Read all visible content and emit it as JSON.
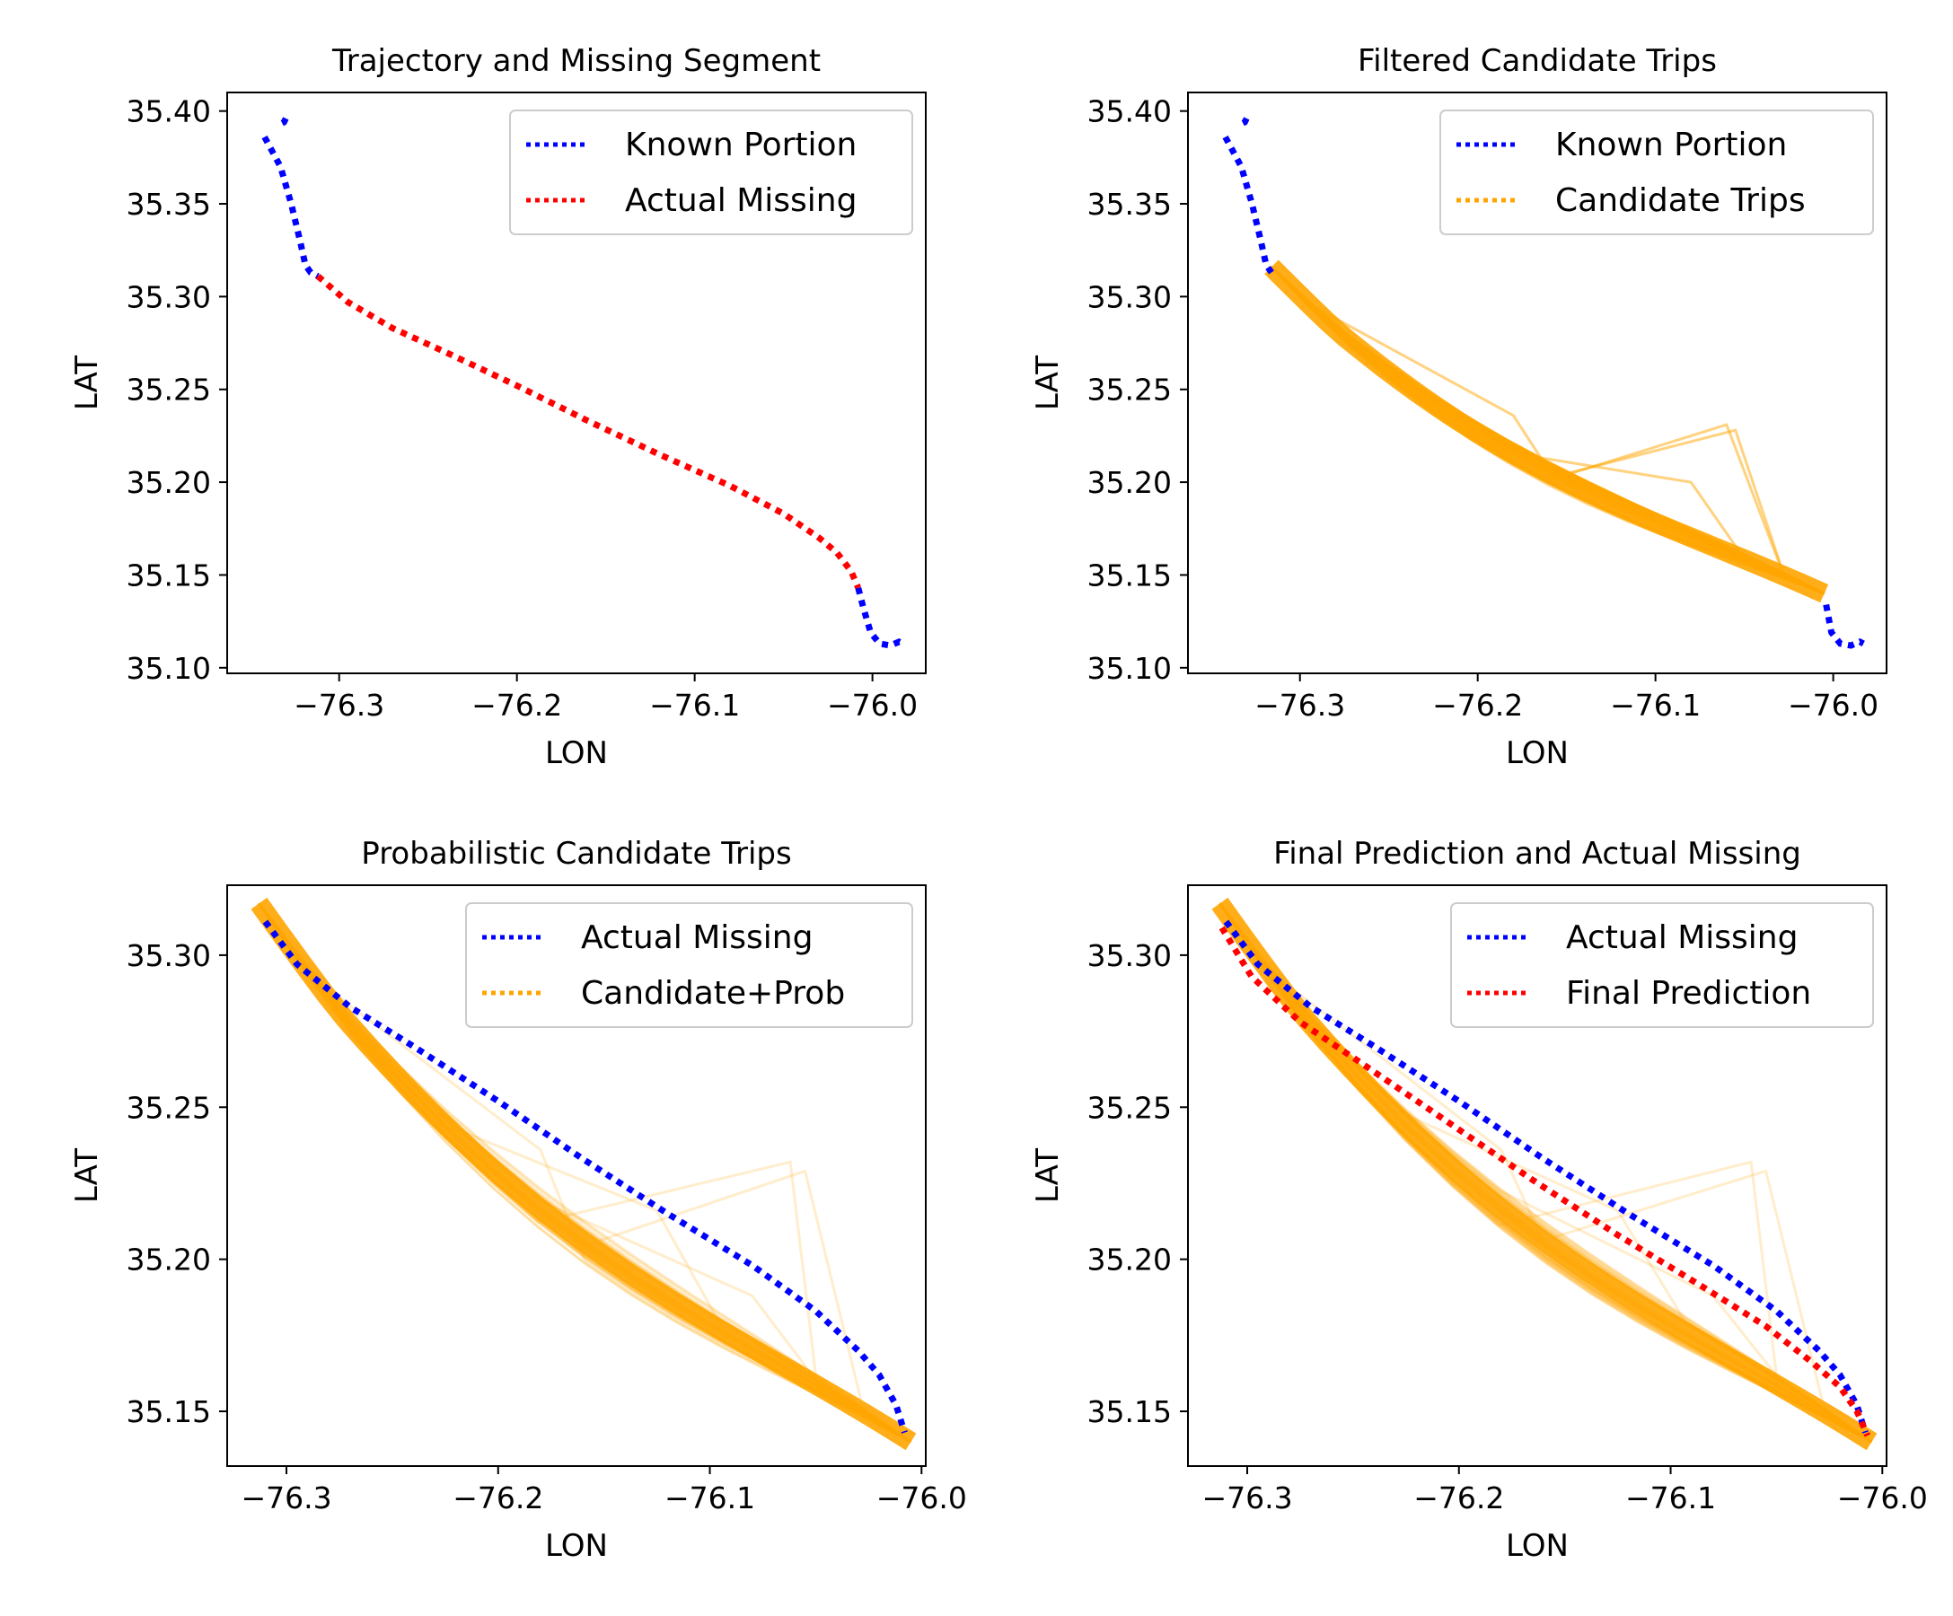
{
  "figure": {
    "panels": 4,
    "layout": "2x2"
  },
  "colors": {
    "known": "#0000ff",
    "actual_missing_red": "#ff0000",
    "candidate": "#ffa500",
    "prediction": "#ff0000"
  },
  "chart_data": [
    {
      "type": "line",
      "title": "Trajectory and Missing Segment",
      "xlabel": "LON",
      "ylabel": "LAT",
      "xlim": [
        -76.363,
        -75.97
      ],
      "ylim": [
        35.097,
        35.41
      ],
      "xticks": [
        -76.3,
        -76.2,
        -76.1,
        -76.0
      ],
      "xtick_labels": [
        "−76.3",
        "−76.2",
        "−76.1",
        "−76.0"
      ],
      "yticks": [
        35.1,
        35.15,
        35.2,
        35.25,
        35.3,
        35.35,
        35.4
      ],
      "ytick_labels": [
        "35.10",
        "35.15",
        "35.20",
        "35.25",
        "35.30",
        "35.35",
        "35.40"
      ],
      "legend": {
        "position": "top-right",
        "entries": [
          {
            "label": "Known Portion",
            "color": "#0000ff"
          },
          {
            "label": "Actual Missing",
            "color": "#ff0000"
          }
        ]
      },
      "series": [
        {
          "name": "Known Portion",
          "color": "#0000ff",
          "style": "dotted",
          "x": [
            -76.33,
            -76.331,
            -76.333
          ],
          "y": [
            35.396,
            35.394,
            35.393
          ]
        },
        {
          "name": "Known Portion",
          "color": "#0000ff",
          "style": "dotted",
          "x": [
            -76.342,
            -76.333,
            -76.327,
            -76.322,
            -76.319,
            -76.316,
            -76.312
          ],
          "y": [
            35.386,
            35.37,
            35.35,
            35.33,
            35.317,
            35.313,
            35.311
          ]
        },
        {
          "name": "Actual Missing",
          "color": "#ff0000",
          "style": "dotted",
          "x": [
            -76.312,
            -76.295,
            -76.27,
            -76.24,
            -76.2,
            -76.16,
            -76.12,
            -76.08,
            -76.05,
            -76.03,
            -76.02,
            -76.012,
            -76.008
          ],
          "y": [
            35.311,
            35.297,
            35.283,
            35.27,
            35.252,
            35.233,
            35.215,
            35.198,
            35.183,
            35.17,
            35.162,
            35.152,
            35.143
          ]
        },
        {
          "name": "Known Portion",
          "color": "#0000ff",
          "style": "dotted",
          "x": [
            -76.008,
            -76.005,
            -76.001,
            -75.996,
            -75.99,
            -75.985,
            -75.983
          ],
          "y": [
            35.143,
            35.132,
            35.119,
            35.113,
            35.112,
            35.114,
            35.113
          ]
        }
      ]
    },
    {
      "type": "line",
      "title": "Filtered Candidate Trips",
      "xlabel": "LON",
      "ylabel": "LAT",
      "xlim": [
        -76.363,
        -75.97
      ],
      "ylim": [
        35.097,
        35.41
      ],
      "xticks": [
        -76.3,
        -76.2,
        -76.1,
        -76.0
      ],
      "xtick_labels": [
        "−76.3",
        "−76.2",
        "−76.1",
        "−76.0"
      ],
      "yticks": [
        35.1,
        35.15,
        35.2,
        35.25,
        35.3,
        35.35,
        35.4
      ],
      "ytick_labels": [
        "35.10",
        "35.15",
        "35.20",
        "35.25",
        "35.30",
        "35.35",
        "35.40"
      ],
      "legend": {
        "position": "top-right",
        "entries": [
          {
            "label": "Known Portion",
            "color": "#0000ff"
          },
          {
            "label": "Candidate Trips",
            "color": "#ffa500"
          }
        ]
      },
      "candidate_bundle": {
        "count": 40,
        "color": "#ffa500",
        "opacity": 0.5,
        "start": [
          -76.316,
          35.312
        ],
        "end": [
          -76.005,
          35.14
        ],
        "detours": [
          [
            -76.06,
            35.231
          ],
          [
            -76.055,
            35.228
          ],
          [
            -76.13,
            35.186
          ],
          [
            -76.08,
            35.2
          ],
          [
            -76.18,
            35.236
          ]
        ]
      },
      "series": [
        {
          "name": "Known Portion",
          "color": "#0000ff",
          "style": "dotted",
          "x": [
            -76.33,
            -76.331,
            -76.333
          ],
          "y": [
            35.396,
            35.394,
            35.393
          ]
        },
        {
          "name": "Known Portion",
          "color": "#0000ff",
          "style": "dotted",
          "x": [
            -76.342,
            -76.333,
            -76.327,
            -76.322,
            -76.319,
            -76.316
          ],
          "y": [
            35.386,
            35.37,
            35.35,
            35.33,
            35.317,
            35.313
          ]
        },
        {
          "name": "Known Portion",
          "color": "#0000ff",
          "style": "dotted",
          "x": [
            -76.004,
            -76.001,
            -75.996,
            -75.99,
            -75.985,
            -75.983
          ],
          "y": [
            35.134,
            35.119,
            35.113,
            35.112,
            35.114,
            35.113
          ]
        }
      ]
    },
    {
      "type": "line",
      "title": "Probabilistic Candidate Trips",
      "xlabel": "LON",
      "ylabel": "LAT",
      "xlim": [
        -76.328,
        -75.998
      ],
      "ylim": [
        35.132,
        35.323
      ],
      "xticks": [
        -76.3,
        -76.2,
        -76.1,
        -76.0
      ],
      "xtick_labels": [
        "−76.3",
        "−76.2",
        "−76.1",
        "−76.0"
      ],
      "yticks": [
        35.15,
        35.2,
        35.25,
        35.3
      ],
      "ytick_labels": [
        "35.15",
        "35.20",
        "35.25",
        "35.30"
      ],
      "legend": {
        "position": "top-right",
        "entries": [
          {
            "label": "Actual Missing",
            "color": "#0000ff"
          },
          {
            "label": "Candidate+Prob",
            "color": "#ffa500"
          }
        ]
      },
      "candidate_bundle": {
        "count": 40,
        "color": "#ffa500",
        "opacity": 0.2,
        "start": [
          -76.313,
          35.313
        ],
        "end": [
          -76.005,
          35.14
        ],
        "detours": [
          [
            -76.062,
            35.232
          ],
          [
            -76.055,
            35.229
          ],
          [
            -76.125,
            35.216
          ],
          [
            -76.08,
            35.188
          ],
          [
            -76.18,
            35.236
          ]
        ]
      },
      "series": [
        {
          "name": "Actual Missing",
          "color": "#0000ff",
          "style": "dotted",
          "x": [
            -76.31,
            -76.295,
            -76.27,
            -76.24,
            -76.2,
            -76.16,
            -76.12,
            -76.08,
            -76.05,
            -76.03,
            -76.02,
            -76.012,
            -76.008
          ],
          "y": [
            35.311,
            35.297,
            35.283,
            35.27,
            35.252,
            35.233,
            35.215,
            35.198,
            35.183,
            35.17,
            35.162,
            35.152,
            35.143
          ]
        }
      ]
    },
    {
      "type": "line",
      "title": "Final Prediction and Actual Missing",
      "xlabel": "LON",
      "ylabel": "LAT",
      "xlim": [
        -76.328,
        -75.998
      ],
      "ylim": [
        35.132,
        35.323
      ],
      "xticks": [
        -76.3,
        -76.2,
        -76.1,
        -76.0
      ],
      "xtick_labels": [
        "−76.3",
        "−76.2",
        "−76.1",
        "−76.0"
      ],
      "yticks": [
        35.15,
        35.2,
        35.25,
        35.3
      ],
      "ytick_labels": [
        "35.15",
        "35.20",
        "35.25",
        "35.30"
      ],
      "legend": {
        "position": "top-right",
        "entries": [
          {
            "label": "Actual Missing",
            "color": "#0000ff"
          },
          {
            "label": "Final Prediction",
            "color": "#ff0000"
          }
        ]
      },
      "candidate_bundle": {
        "count": 40,
        "color": "#ffa500",
        "opacity": 0.2,
        "start": [
          -76.313,
          35.313
        ],
        "end": [
          -76.005,
          35.14
        ],
        "detours": [
          [
            -76.062,
            35.232
          ],
          [
            -76.055,
            35.229
          ],
          [
            -76.125,
            35.216
          ],
          [
            -76.08,
            35.188
          ],
          [
            -76.18,
            35.236
          ]
        ]
      },
      "series": [
        {
          "name": "Actual Missing",
          "color": "#0000ff",
          "style": "dotted",
          "x": [
            -76.31,
            -76.295,
            -76.27,
            -76.24,
            -76.2,
            -76.16,
            -76.12,
            -76.08,
            -76.05,
            -76.03,
            -76.02,
            -76.012,
            -76.008
          ],
          "y": [
            35.311,
            35.297,
            35.283,
            35.27,
            35.252,
            35.233,
            35.215,
            35.198,
            35.183,
            35.17,
            35.162,
            35.152,
            35.143
          ]
        },
        {
          "name": "Final Prediction",
          "color": "#ff0000",
          "style": "dotted",
          "x": [
            -76.312,
            -76.298,
            -76.275,
            -76.245,
            -76.205,
            -76.165,
            -76.125,
            -76.085,
            -76.055,
            -76.033,
            -76.02,
            -76.012,
            -76.007
          ],
          "y": [
            35.309,
            35.293,
            35.278,
            35.264,
            35.245,
            35.226,
            35.208,
            35.191,
            35.178,
            35.166,
            35.158,
            35.15,
            35.142
          ]
        }
      ]
    }
  ]
}
